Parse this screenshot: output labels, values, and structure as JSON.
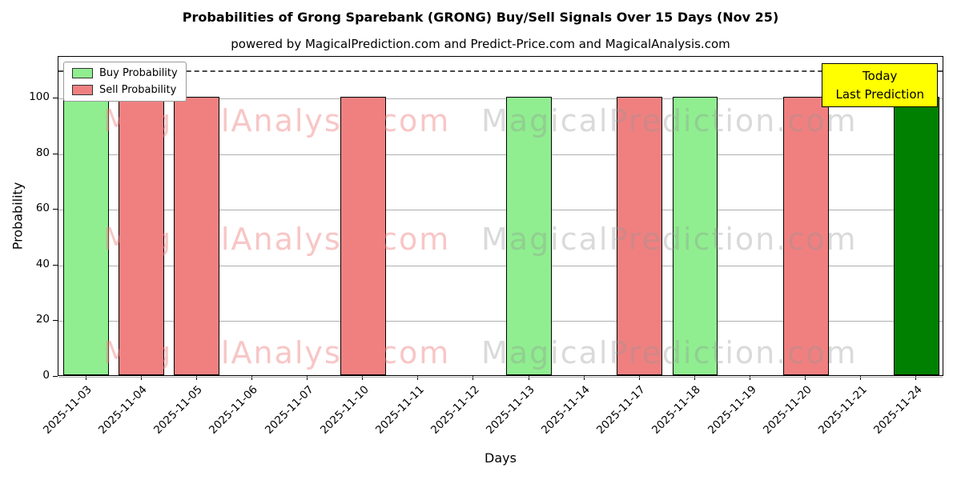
{
  "title": "Probabilities of Grong Sparebank (GRONG) Buy/Sell Signals Over 15 Days (Nov 25)",
  "subtitle": "powered by MagicalPrediction.com and Predict-Price.com and MagicalAnalysis.com",
  "legend": {
    "buy_label": "Buy Probability",
    "sell_label": "Sell Probability"
  },
  "annotation": {
    "line1": "Today",
    "line2": "Last Prediction"
  },
  "watermarks": {
    "left_text": "MagicalAnalysis.com",
    "right_text": "MagicalPrediction.com"
  },
  "colors": {
    "buy": "#90ee90",
    "sell": "#f08080",
    "today": "#008000",
    "annotation_bg": "#ffff00",
    "grid": "#b0b0b0"
  },
  "chart_data": {
    "type": "bar",
    "title": "Probabilities of Grong Sparebank (GRONG) Buy/Sell Signals Over 15 Days (Nov 25)",
    "xlabel": "Days",
    "ylabel": "Probability",
    "ylim": [
      0,
      115
    ],
    "yticks": [
      0,
      20,
      40,
      60,
      80,
      100
    ],
    "dashed_threshold": 110,
    "grid": "horizontal",
    "legend_position": "upper-left",
    "categories": [
      "2025-11-03",
      "2025-11-04",
      "2025-11-05",
      "2025-11-06",
      "2025-11-07",
      "2025-11-10",
      "2025-11-11",
      "2025-11-12",
      "2025-11-13",
      "2025-11-14",
      "2025-11-17",
      "2025-11-18",
      "2025-11-19",
      "2025-11-20",
      "2025-11-21",
      "2025-11-24"
    ],
    "series": [
      {
        "name": "Buy Probability",
        "color": "#90ee90",
        "values": [
          100,
          0,
          0,
          0,
          0,
          0,
          0,
          0,
          100,
          0,
          0,
          100,
          0,
          0,
          0,
          0
        ]
      },
      {
        "name": "Sell Probability",
        "color": "#f08080",
        "values": [
          0,
          100,
          100,
          0,
          0,
          100,
          0,
          0,
          0,
          0,
          100,
          0,
          0,
          100,
          0,
          0
        ]
      },
      {
        "name": "Today / Last Prediction",
        "color": "#008000",
        "values": [
          0,
          0,
          0,
          0,
          0,
          0,
          0,
          0,
          0,
          0,
          0,
          0,
          0,
          0,
          0,
          100
        ]
      }
    ]
  }
}
